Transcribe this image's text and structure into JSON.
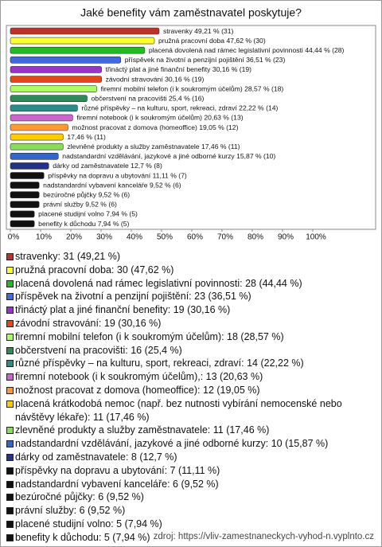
{
  "chart_data": {
    "type": "bar",
    "orientation": "horizontal",
    "title": "Jaké benefity vám zaměstnavatel poskytuje?",
    "values": [
      49.21,
      47.62,
      44.44,
      36.51,
      30.16,
      30.16,
      28.57,
      25.4,
      22.22,
      20.63,
      19.05,
      17.46,
      17.46,
      15.87,
      12.7,
      11.11,
      9.52,
      9.52,
      9.52,
      7.94,
      7.94
    ],
    "value_labels": [
      "stravenky 49,21 % (31)",
      "pružná pracovní doba 47,62 % (30)",
      "placená dovolená nad rámec legislativní povinnosti 44,44 % (28)",
      "příspěvek na životní a penzijní pojištění 36,51 % (23)",
      "třináctý plat a jiné finanční benefity 30,16 % (19)",
      "závodní stravování 30,16 % (19)",
      "firemní mobilní telefon (i k soukromým účelům) 28,57 % (18)",
      "občerstvení na pracovišti 25,4 % (16)",
      "různé příspěvky – na kulturu, sport, rekreaci, zdraví 22,22 % (14)",
      "firemní notebook (i k soukromým účelům) 20,63 % (13)",
      "možnost pracovat z domova (homeoffice) 19,05 % (12)",
      "17,46 % (11)",
      "zlevněné produkty a služby zaměstnavatele 17,46 % (11)",
      "nadstandardní vzdělávání, jazykové a jiné odborné kurzy 15,87 % (10)",
      "dárky od zaměstnavatele 12,7 % (8)",
      "příspěvky na dopravu a ubytování 11,11 % (7)",
      "nadstandardní vybavení kanceláře 9,52 % (6)",
      "bezúročné půjčky 9,52 % (6)",
      "právní služby 9,52 % (6)",
      "placené studijní volno 7,94 % (5)",
      "benefity k důchodu 7,94 % (5)"
    ],
    "colors": [
      "#c0302a",
      "#ffff33",
      "#22bb22",
      "#4169e1",
      "#9933cc",
      "#e8441c",
      "#aaff66",
      "#2e8b57",
      "#2e8b8b",
      "#cc66cc",
      "#ff9933",
      "#ffcc00",
      "#88dd55",
      "#3366cc",
      "#223388",
      "#111111",
      "#111111",
      "#111111",
      "#111111",
      "#111111",
      "#111111"
    ],
    "legend": [
      "stravenky: 31 (49,21 %)",
      "pružná pracovní doba: 30 (47,62 %)",
      "placená dovolená nad rámec legislativní povinnosti: 28 (44,44 %)",
      "příspěvek na životní a penzijní pojištění: 23 (36,51 %)",
      "třináctý plat a jiné finanční benefity: 19 (30,16 %)",
      "závodní stravování: 19 (30,16 %)",
      "firemní mobilní telefon (i k soukromým účelům): 18 (28,57 %)",
      "občerstvení na pracovišti: 16 (25,4 %)",
      "různé příspěvky – na kulturu, sport, rekreaci, zdraví: 14 (22,22 %)",
      "firemní notebook (i k soukromým účelům),: 13 (20,63 %)",
      "možnost pracovat z domova (homeoffice): 12 (19,05 %)",
      "placená krátkodobá nemoc (např. bez nutnosti vybírání nemocenské nebo návštěvy lékaře): 11 (17,46 %)",
      "zlevněné produkty a služby zaměstnavatele: 11 (17,46 %)",
      "nadstandardní vzdělávání, jazykové a jiné odborné kurzy: 10 (15,87 %)",
      "dárky od zaměstnavatele: 8 (12,7 %)",
      "příspěvky na dopravu a ubytování: 7 (11,11 %)",
      "nadstandardní vybavení kanceláře: 6 (9,52 %)",
      "bezúročné půjčky: 6 (9,52 %)",
      "právní služby: 6 (9,52 %)",
      "placené studijní volno: 5 (7,94 %)",
      "benefity k důchodu: 5 (7,94 %)"
    ],
    "xlim": [
      0,
      100
    ],
    "xticks": [
      {
        "value": 0,
        "label": "0%"
      },
      {
        "value": 10,
        "label": "10%"
      },
      {
        "value": 20,
        "label": "20%"
      },
      {
        "value": 30,
        "label": "30%"
      },
      {
        "value": 40,
        "label": "40%"
      },
      {
        "value": 50,
        "label": "50%"
      },
      {
        "value": 60,
        "label": "60%"
      },
      {
        "value": 70,
        "label": "70%"
      },
      {
        "value": 80,
        "label": "80%"
      },
      {
        "value": 90,
        "label": "90%"
      },
      {
        "value": 100,
        "label": "100%"
      }
    ],
    "source": "zdroj: https://vliv-zamestnaneckych-vyhod-n.vyplnto.cz"
  }
}
